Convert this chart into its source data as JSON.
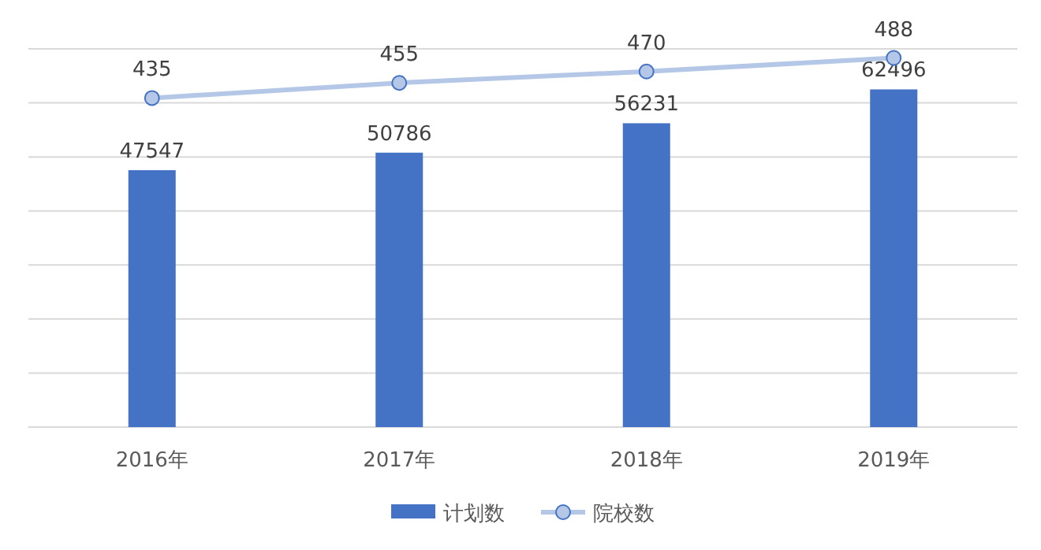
{
  "chart_data": {
    "type": "bar",
    "categories": [
      "2016年",
      "2017年",
      "2018年",
      "2019年"
    ],
    "series": [
      {
        "name": "计划数",
        "color": "#4472c4",
        "values": [
          47547,
          50786,
          56231,
          62496
        ]
      },
      {
        "name": "院校数",
        "type": "line",
        "axis": "y2",
        "color": "#b4c7e7",
        "marker": "circle",
        "values": [
          435,
          455,
          470,
          488
        ]
      }
    ],
    "ylim": [
      0,
      70000
    ],
    "yticks": [
      {
        "value": 0,
        "label": null
      },
      {
        "value": 10000,
        "label": null
      },
      {
        "value": 20000,
        "label": null
      },
      {
        "value": 30000,
        "label": null
      },
      {
        "value": 40000,
        "label": null
      },
      {
        "value": 50000,
        "label": null
      },
      {
        "value": 60000,
        "label": null
      },
      {
        "value": 70000,
        "label": null
      }
    ],
    "y2lim": [
      0,
      500
    ],
    "tick_labels": "x",
    "grid": "y",
    "data_labels": true,
    "legend": "bottom"
  }
}
